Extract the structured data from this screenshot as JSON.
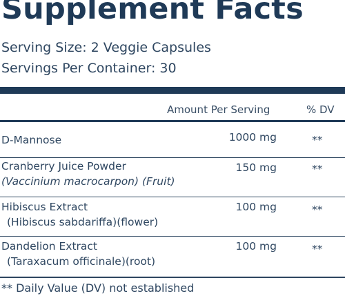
{
  "title": "Supplement Facts",
  "serving_size": "Serving Size:  2 Veggie Capsules",
  "servings_per_container": "Servings Per Container: 30",
  "header": {
    "amount": "Amount Per Serving",
    "dv": "% DV"
  },
  "rows": [
    {
      "name": "D-Mannose",
      "detail": "",
      "amount": "1000 mg",
      "dv": "**"
    },
    {
      "name": "Cranberry Juice Powder",
      "detail": "(Vaccinium macrocarpon) (Fruit)",
      "amount": "150 mg",
      "dv": "**"
    },
    {
      "name": "Hibiscus Extract",
      "detail": "(Hibiscus sabdariffa)(flower)",
      "amount": "100 mg",
      "dv": "**"
    },
    {
      "name": "Dandelion Extract",
      "detail": "(Taraxacum officinale)(root)",
      "amount": "100 mg",
      "dv": "**"
    }
  ],
  "footnote": "** Daily Value (DV) not established"
}
